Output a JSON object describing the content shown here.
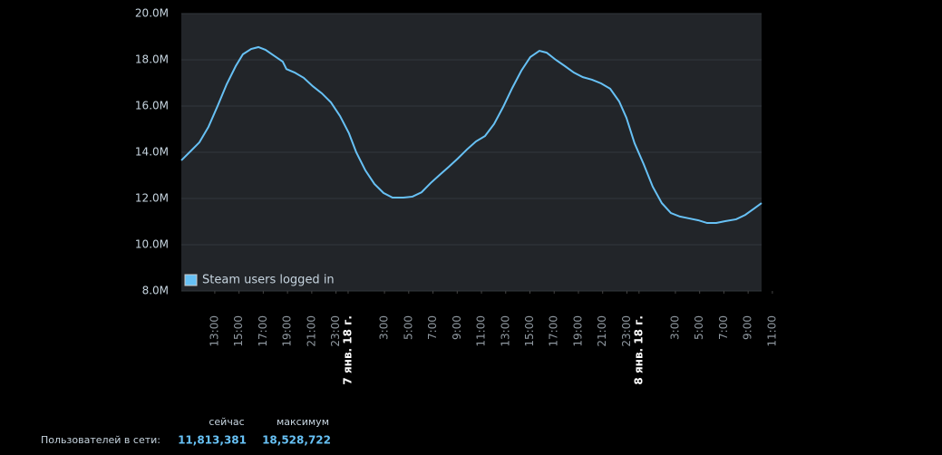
{
  "chart_data": {
    "type": "line",
    "x": [
      -13.76,
      -13.01,
      -12.27,
      -11.52,
      -10.77,
      -10.02,
      -9.27,
      -8.68,
      -8.0,
      -7.4,
      -6.81,
      -6.06,
      -5.39,
      -5.09,
      -4.41,
      -3.66,
      -2.92,
      -2.17,
      -1.42,
      -0.67,
      0.07,
      0.67,
      1.42,
      2.17,
      2.92,
      3.66,
      4.56,
      5.31,
      6.06,
      6.81,
      7.55,
      8.3,
      9.05,
      9.8,
      10.55,
      11.29,
      12.04,
      12.79,
      13.54,
      14.29,
      15.03,
      15.78,
      16.38,
      17.13,
      17.88,
      18.62,
      19.37,
      20.12,
      20.87,
      21.62,
      22.36,
      22.96,
      23.63,
      24.38,
      25.13,
      25.88,
      26.63,
      27.37,
      28.12,
      28.87,
      29.62,
      30.37,
      31.11,
      32.01,
      32.76,
      33.51,
      34.11
    ],
    "series": [
      {
        "name": "Steam users logged in",
        "color": "#67c1f5",
        "values": [
          13.65,
          14.04,
          14.43,
          15.1,
          16.0,
          16.94,
          17.73,
          18.24,
          18.47,
          18.55,
          18.43,
          18.16,
          17.92,
          17.6,
          17.45,
          17.22,
          16.86,
          16.55,
          16.16,
          15.57,
          14.82,
          14.0,
          13.22,
          12.63,
          12.24,
          12.04,
          12.04,
          12.08,
          12.27,
          12.67,
          13.02,
          13.37,
          13.73,
          14.12,
          14.47,
          14.7,
          15.22,
          15.96,
          16.78,
          17.53,
          18.12,
          18.39,
          18.31,
          18.0,
          17.73,
          17.45,
          17.25,
          17.14,
          16.98,
          16.75,
          16.2,
          15.49,
          14.39,
          13.49,
          12.51,
          11.8,
          11.37,
          11.22,
          11.14,
          11.06,
          10.94,
          10.94,
          11.02,
          11.1,
          11.29,
          11.57,
          11.8
        ]
      }
    ],
    "xlim": [
      -13.76,
      34.11
    ],
    "xticks": [
      {
        "value": -11,
        "label": "13:00"
      },
      {
        "value": -9,
        "label": "15:00"
      },
      {
        "value": -7,
        "label": "17:00"
      },
      {
        "value": -5,
        "label": "19:00"
      },
      {
        "value": -3,
        "label": "21:00"
      },
      {
        "value": -1,
        "label": "23:00"
      },
      {
        "value": 0,
        "label": "7 янв. 18 г."
      },
      {
        "value": 3,
        "label": "3:00"
      },
      {
        "value": 5,
        "label": "5:00"
      },
      {
        "value": 7,
        "label": "7:00"
      },
      {
        "value": 9,
        "label": "9:00"
      },
      {
        "value": 11,
        "label": "11:00"
      },
      {
        "value": 13,
        "label": "13:00"
      },
      {
        "value": 15,
        "label": "15:00"
      },
      {
        "value": 17,
        "label": "17:00"
      },
      {
        "value": 19,
        "label": "19:00"
      },
      {
        "value": 21,
        "label": "21:00"
      },
      {
        "value": 23,
        "label": "23:00"
      },
      {
        "value": 24,
        "label": "8 янв. 18 г."
      },
      {
        "value": 27,
        "label": "3:00"
      },
      {
        "value": 29,
        "label": "5:00"
      },
      {
        "value": 31,
        "label": "7:00"
      },
      {
        "value": 33,
        "label": "9:00"
      },
      {
        "value": 35,
        "label": "11:00"
      }
    ],
    "ylim": [
      8,
      20
    ],
    "yticks": [
      {
        "value": 8,
        "label": "8.0M"
      },
      {
        "value": 10,
        "label": "10.0M"
      },
      {
        "value": 12,
        "label": "12.0M"
      },
      {
        "value": 14,
        "label": "14.0M"
      },
      {
        "value": 16,
        "label": "16.0M"
      },
      {
        "value": 18,
        "label": "18.0M"
      },
      {
        "value": 20,
        "label": "20.0M"
      }
    ],
    "grid": true,
    "legend": "lower left"
  },
  "stats": {
    "label": "Пользователей в сети:",
    "headers": [
      "сейчас",
      "максимум"
    ],
    "values": [
      "11,813,381",
      "18,528,722"
    ]
  }
}
